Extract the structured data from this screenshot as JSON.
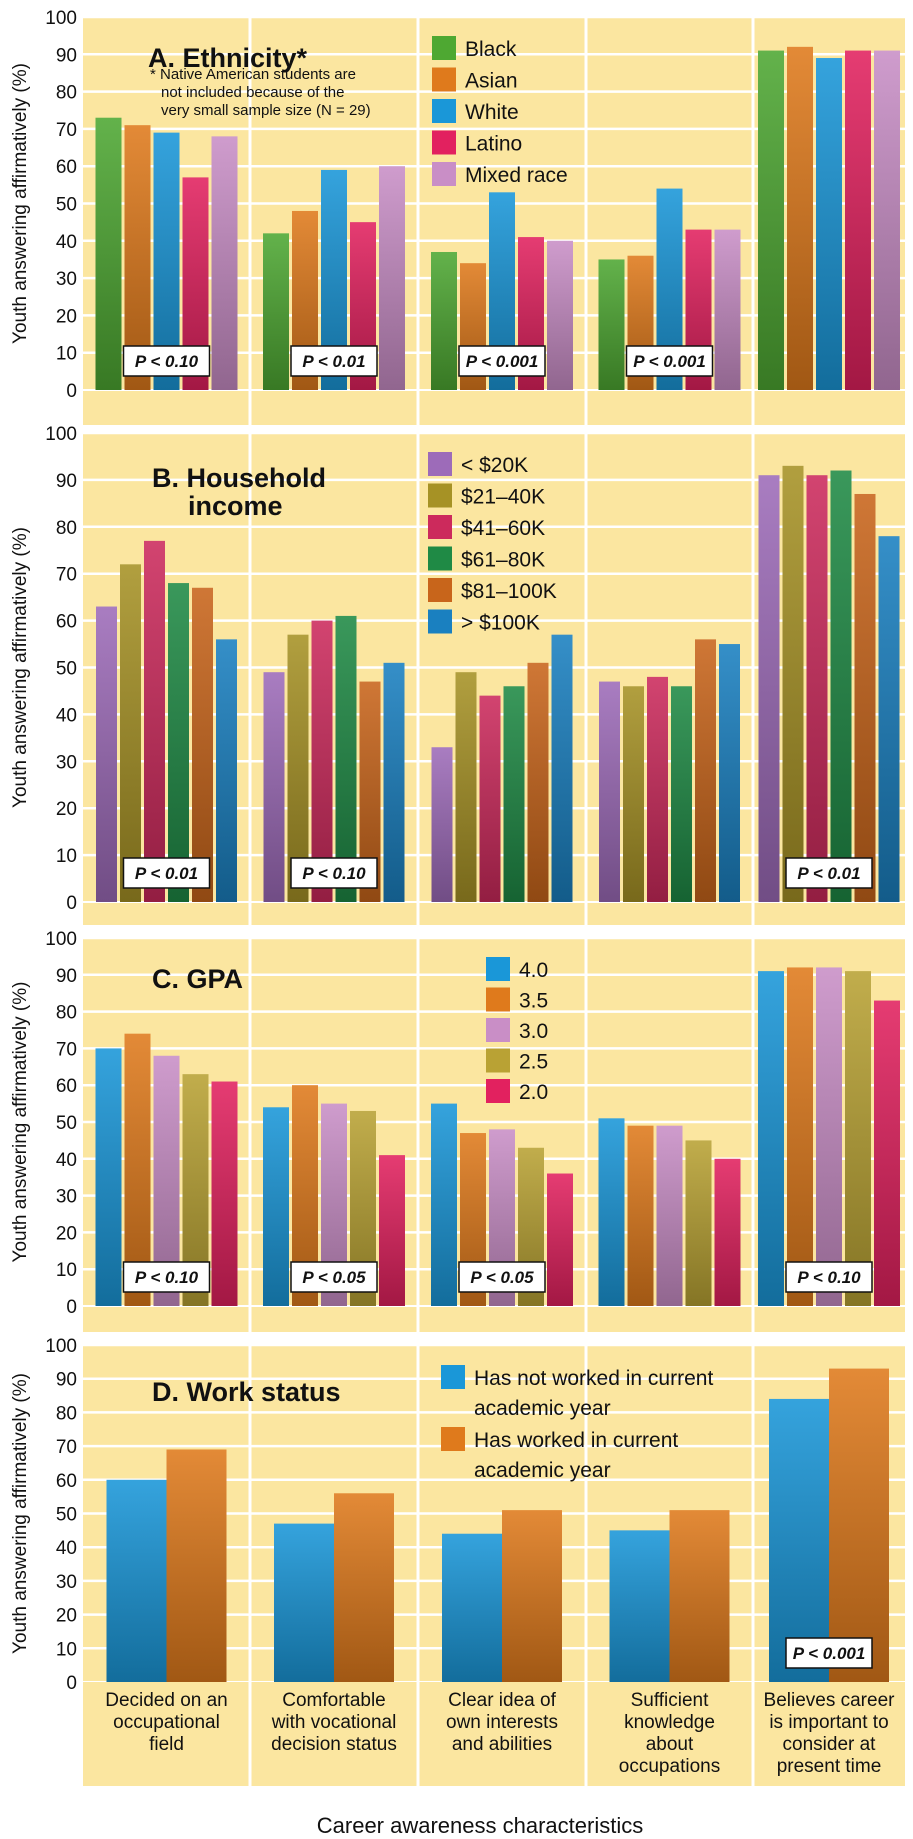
{
  "x_axis_title": "Career awareness characteristics",
  "y_axis_title": "Youth answering affirmatively (%)",
  "categories": [
    [
      "Decided on an",
      "occupational",
      "field"
    ],
    [
      "Comfortable",
      "with vocational",
      "decision status"
    ],
    [
      "Clear idea of",
      "own interests",
      "and abilities"
    ],
    [
      "Sufficient",
      "knowledge",
      "about",
      "occupations"
    ],
    [
      "Believes career",
      "is important to",
      "consider at",
      "present time"
    ]
  ],
  "colors": {
    "background": "#fbe6a0",
    "gridline": "#ffffff",
    "Black": "#4ea832",
    "Asian": "#df7a1c",
    "White": "#1a97d8",
    "Latino": "#e2215f",
    "Mixed race": "#c98ec6",
    "<$20K": "#9d6bb9",
    "$21-40K": "#a69225",
    "$41-60K": "#cc2a5c",
    "$61-80K": "#1f8a45",
    "$81-100K": "#c8651b",
    ">$100K": "#1a80c0",
    "4.0": "#1a97d8",
    "3.5": "#df7a1c",
    "3.0": "#c98ec6",
    "2.5": "#b9a234",
    "2.0": "#e2215f",
    "not_worked": "#1a97d8",
    "worked": "#df7a1c"
  },
  "chart_data": [
    {
      "type": "bar",
      "title": "A. Ethnicity*",
      "footnote": [
        "* Native American students are",
        "not included because of the",
        "very small sample size (N = 29)"
      ],
      "ylim": [
        0,
        100
      ],
      "ticks": [
        0,
        10,
        20,
        30,
        40,
        50,
        60,
        70,
        80,
        90,
        100
      ],
      "series": [
        {
          "name": "Black",
          "color": "#4ea832",
          "values": [
            73,
            42,
            37,
            35,
            91
          ]
        },
        {
          "name": "Asian",
          "color": "#df7a1c",
          "values": [
            71,
            48,
            34,
            36,
            92
          ]
        },
        {
          "name": "White",
          "color": "#1a97d8",
          "values": [
            69,
            59,
            53,
            54,
            89
          ]
        },
        {
          "name": "Latino",
          "color": "#e2215f",
          "values": [
            57,
            45,
            41,
            43,
            91
          ]
        },
        {
          "name": "Mixed race",
          "color": "#c98ec6",
          "values": [
            68,
            60,
            40,
            43,
            91
          ]
        }
      ],
      "p_values": [
        "P < 0.10",
        "P < 0.01",
        "P < 0.001",
        "P < 0.001",
        ""
      ]
    },
    {
      "type": "bar",
      "title": "B. Household income",
      "ylim": [
        0,
        100
      ],
      "ticks": [
        0,
        10,
        20,
        30,
        40,
        50,
        60,
        70,
        80,
        90,
        100
      ],
      "series": [
        {
          "name": "< $20K",
          "color": "#9d6bb9",
          "values": [
            63,
            49,
            33,
            47,
            91
          ]
        },
        {
          "name": "$21–40K",
          "color": "#a69225",
          "values": [
            72,
            57,
            49,
            46,
            93
          ]
        },
        {
          "name": "$41–60K",
          "color": "#cc2a5c",
          "values": [
            77,
            60,
            44,
            48,
            91
          ]
        },
        {
          "name": "$61–80K",
          "color": "#1f8a45",
          "values": [
            68,
            61,
            46,
            46,
            92
          ]
        },
        {
          "name": "$81–100K",
          "color": "#c8651b",
          "values": [
            67,
            47,
            51,
            56,
            87
          ]
        },
        {
          "name": "> $100K",
          "color": "#1a80c0",
          "values": [
            56,
            51,
            57,
            55,
            78
          ]
        }
      ],
      "p_values": [
        "P < 0.01",
        "P < 0.10",
        "",
        "",
        "P < 0.01"
      ]
    },
    {
      "type": "bar",
      "title": "C. GPA",
      "ylim": [
        0,
        100
      ],
      "ticks": [
        0,
        10,
        20,
        30,
        40,
        50,
        60,
        70,
        80,
        90,
        100
      ],
      "series": [
        {
          "name": "4.0",
          "color": "#1a97d8",
          "values": [
            70,
            54,
            55,
            51,
            91
          ]
        },
        {
          "name": "3.5",
          "color": "#df7a1c",
          "values": [
            74,
            60,
            47,
            49,
            92
          ]
        },
        {
          "name": "3.0",
          "color": "#c98ec6",
          "values": [
            68,
            55,
            48,
            49,
            92
          ]
        },
        {
          "name": "2.5",
          "color": "#b9a234",
          "values": [
            63,
            53,
            43,
            45,
            91
          ]
        },
        {
          "name": "2.0",
          "color": "#e2215f",
          "values": [
            61,
            41,
            36,
            40,
            83
          ]
        }
      ],
      "p_values": [
        "P < 0.10",
        "P < 0.05",
        "P < 0.05",
        "",
        "P < 0.10"
      ]
    },
    {
      "type": "bar",
      "title": "D. Work status",
      "ylim": [
        0,
        100
      ],
      "ticks": [
        0,
        10,
        20,
        30,
        40,
        50,
        60,
        70,
        80,
        90,
        100
      ],
      "series": [
        {
          "name": "Has not worked in current academic year",
          "legend_lines": [
            "Has not worked in current",
            "academic year"
          ],
          "color": "#1a97d8",
          "values": [
            60,
            47,
            44,
            45,
            84
          ]
        },
        {
          "name": "Has worked in current academic year",
          "legend_lines": [
            "Has worked in current",
            "academic year"
          ],
          "color": "#df7a1c",
          "values": [
            69,
            56,
            51,
            51,
            93
          ]
        }
      ],
      "p_values": [
        "",
        "",
        "",
        "",
        "P < 0.001"
      ]
    }
  ]
}
